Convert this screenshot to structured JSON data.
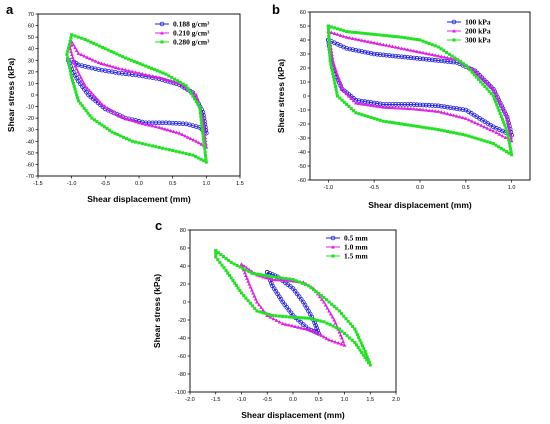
{
  "chart_data": [
    {
      "panel": "a",
      "type": "line",
      "xlabel": "Shear displacement (mm)",
      "ylabel": "Shear stress (kPa)",
      "xlim": [
        -1.5,
        1.5
      ],
      "ylim": [
        -70,
        70
      ],
      "xticks": [
        "-1.5",
        "-1.0",
        "-0.5",
        "0.0",
        "0.5",
        "1.0",
        "1.5"
      ],
      "yticks": [
        "-70",
        "-60",
        "-50",
        "-40",
        "-30",
        "-20",
        "-10",
        "0",
        "10",
        "20",
        "30",
        "40",
        "50",
        "60",
        "70"
      ],
      "legend_position": "top-right",
      "series": [
        {
          "name": "0.188 g/cm³",
          "color": "#1f1fe0",
          "marker": "circle",
          "points": [
            [
              -1.0,
              30
            ],
            [
              -0.9,
              26
            ],
            [
              -0.6,
              22
            ],
            [
              -0.3,
              19
            ],
            [
              0.0,
              17
            ],
            [
              0.3,
              14
            ],
            [
              0.6,
              9
            ],
            [
              0.8,
              2
            ],
            [
              0.95,
              -15
            ],
            [
              1.0,
              -33
            ],
            [
              0.9,
              -28
            ],
            [
              0.7,
              -25
            ],
            [
              0.4,
              -24
            ],
            [
              0.1,
              -24
            ],
            [
              -0.2,
              -20
            ],
            [
              -0.5,
              -12
            ],
            [
              -0.75,
              0
            ],
            [
              -0.9,
              12
            ],
            [
              -1.0,
              22
            ],
            [
              -1.05,
              30
            ]
          ]
        },
        {
          "name": "0.210 g/cm³",
          "color": "#e020e0",
          "marker": "triangle",
          "points": [
            [
              -1.0,
              46
            ],
            [
              -0.9,
              36
            ],
            [
              -0.6,
              28
            ],
            [
              -0.3,
              23
            ],
            [
              0.0,
              19
            ],
            [
              0.3,
              15
            ],
            [
              0.6,
              10
            ],
            [
              0.85,
              0
            ],
            [
              0.95,
              -20
            ],
            [
              1.0,
              -45
            ],
            [
              0.85,
              -40
            ],
            [
              0.6,
              -33
            ],
            [
              0.3,
              -28
            ],
            [
              0.0,
              -24
            ],
            [
              -0.3,
              -18
            ],
            [
              -0.55,
              -8
            ],
            [
              -0.8,
              8
            ],
            [
              -0.95,
              25
            ],
            [
              -1.02,
              40
            ],
            [
              -1.0,
              46
            ]
          ]
        },
        {
          "name": "0.280 g/cm³",
          "color": "#22e022",
          "marker": "square",
          "points": [
            [
              -1.0,
              52
            ],
            [
              -0.8,
              48
            ],
            [
              -0.5,
              40
            ],
            [
              -0.2,
              32
            ],
            [
              0.1,
              25
            ],
            [
              0.4,
              18
            ],
            [
              0.7,
              8
            ],
            [
              0.9,
              -10
            ],
            [
              1.0,
              -58
            ],
            [
              0.8,
              -52
            ],
            [
              0.5,
              -48
            ],
            [
              0.2,
              -44
            ],
            [
              -0.1,
              -40
            ],
            [
              -0.4,
              -32
            ],
            [
              -0.7,
              -20
            ],
            [
              -0.9,
              -5
            ],
            [
              -1.0,
              15
            ],
            [
              -1.07,
              35
            ],
            [
              -1.0,
              52
            ]
          ]
        }
      ]
    },
    {
      "panel": "b",
      "type": "line",
      "xlabel": "Shear displacement (mm)",
      "ylabel": "Shear stress (kPa)",
      "xlim": [
        -1.2,
        1.2
      ],
      "ylim": [
        -60,
        60
      ],
      "xticks": [
        "-1.0",
        "-0.5",
        "0.0",
        "0.5",
        "1.0"
      ],
      "yticks": [
        "-60",
        "-50",
        "-40",
        "-30",
        "-20",
        "-10",
        "0",
        "10",
        "20",
        "30",
        "40",
        "50",
        "60"
      ],
      "legend_position": "top-right",
      "series": [
        {
          "name": "100 kPa",
          "color": "#1f1fe0",
          "marker": "circle",
          "points": [
            [
              -1.0,
              40
            ],
            [
              -0.8,
              34
            ],
            [
              -0.5,
              30
            ],
            [
              -0.2,
              28
            ],
            [
              0.1,
              26
            ],
            [
              0.4,
              24
            ],
            [
              0.6,
              18
            ],
            [
              0.8,
              5
            ],
            [
              0.95,
              -15
            ],
            [
              1.0,
              -28
            ],
            [
              0.8,
              -22
            ],
            [
              0.5,
              -10
            ],
            [
              0.2,
              -7
            ],
            [
              -0.1,
              -6
            ],
            [
              -0.4,
              -6
            ],
            [
              -0.7,
              -3
            ],
            [
              -0.85,
              5
            ],
            [
              -0.95,
              20
            ],
            [
              -1.0,
              40
            ]
          ]
        },
        {
          "name": "200 kPa",
          "color": "#e020e0",
          "marker": "triangle",
          "points": [
            [
              -1.0,
              46
            ],
            [
              -0.8,
              42
            ],
            [
              -0.5,
              38
            ],
            [
              -0.2,
              34
            ],
            [
              0.1,
              30
            ],
            [
              0.4,
              26
            ],
            [
              0.6,
              18
            ],
            [
              0.8,
              5
            ],
            [
              0.95,
              -15
            ],
            [
              1.0,
              -32
            ],
            [
              0.8,
              -25
            ],
            [
              0.5,
              -16
            ],
            [
              0.2,
              -11
            ],
            [
              -0.1,
              -9
            ],
            [
              -0.4,
              -8
            ],
            [
              -0.7,
              -5
            ],
            [
              -0.85,
              5
            ],
            [
              -0.95,
              25
            ],
            [
              -1.0,
              46
            ]
          ]
        },
        {
          "name": "300 kPa",
          "color": "#22e022",
          "marker": "square",
          "points": [
            [
              -1.0,
              50
            ],
            [
              -0.8,
              46
            ],
            [
              -0.5,
              44
            ],
            [
              -0.2,
              42
            ],
            [
              0.0,
              40
            ],
            [
              0.2,
              35
            ],
            [
              0.5,
              22
            ],
            [
              0.8,
              0
            ],
            [
              0.95,
              -25
            ],
            [
              1.0,
              -42
            ],
            [
              0.8,
              -34
            ],
            [
              0.5,
              -28
            ],
            [
              0.2,
              -24
            ],
            [
              -0.1,
              -21
            ],
            [
              -0.4,
              -18
            ],
            [
              -0.7,
              -12
            ],
            [
              -0.9,
              0
            ],
            [
              -0.98,
              25
            ],
            [
              -1.0,
              50
            ]
          ]
        }
      ]
    },
    {
      "panel": "c",
      "type": "line",
      "xlabel": "Shear displacement (mm)",
      "ylabel": "Shear stress (kPa)",
      "xlim": [
        -2.0,
        2.0
      ],
      "ylim": [
        -100,
        80
      ],
      "xticks": [
        "-2.0",
        "-1.5",
        "-1.0",
        "-0.5",
        "0.0",
        "0.5",
        "1.0",
        "1.5",
        "2.0"
      ],
      "yticks": [
        "-100",
        "-80",
        "-60",
        "-40",
        "-20",
        "0",
        "20",
        "40",
        "60",
        "80"
      ],
      "legend_position": "top-right",
      "series": [
        {
          "name": "0.5 mm",
          "color": "#1f1fe0",
          "marker": "circle",
          "points": [
            [
              -0.5,
              33
            ],
            [
              -0.3,
              28
            ],
            [
              0.0,
              15
            ],
            [
              0.2,
              0
            ],
            [
              0.4,
              -20
            ],
            [
              0.5,
              -35
            ],
            [
              0.3,
              -30
            ],
            [
              0.0,
              -15
            ],
            [
              -0.2,
              0
            ],
            [
              -0.4,
              18
            ],
            [
              -0.5,
              33
            ]
          ]
        },
        {
          "name": "1.0 mm",
          "color": "#e020e0",
          "marker": "triangle",
          "points": [
            [
              -1.0,
              42
            ],
            [
              -0.7,
              30
            ],
            [
              -0.4,
              25
            ],
            [
              -0.1,
              24
            ],
            [
              0.2,
              22
            ],
            [
              0.4,
              15
            ],
            [
              0.6,
              0
            ],
            [
              0.8,
              -20
            ],
            [
              0.95,
              -40
            ],
            [
              1.0,
              -48
            ],
            [
              0.7,
              -42
            ],
            [
              0.4,
              -32
            ],
            [
              0.1,
              -28
            ],
            [
              -0.2,
              -24
            ],
            [
              -0.5,
              -15
            ],
            [
              -0.7,
              0
            ],
            [
              -0.85,
              20
            ],
            [
              -1.0,
              42
            ]
          ]
        },
        {
          "name": "1.5 mm",
          "color": "#22e022",
          "marker": "square",
          "points": [
            [
              -1.5,
              57
            ],
            [
              -1.2,
              44
            ],
            [
              -0.8,
              32
            ],
            [
              -0.4,
              28
            ],
            [
              0.0,
              25
            ],
            [
              0.3,
              18
            ],
            [
              0.6,
              5
            ],
            [
              0.9,
              -10
            ],
            [
              1.2,
              -30
            ],
            [
              1.4,
              -55
            ],
            [
              1.5,
              -70
            ],
            [
              1.2,
              -45
            ],
            [
              0.9,
              -30
            ],
            [
              0.6,
              -22
            ],
            [
              0.3,
              -18
            ],
            [
              0.0,
              -17
            ],
            [
              -0.4,
              -15
            ],
            [
              -0.7,
              -10
            ],
            [
              -1.0,
              10
            ],
            [
              -1.3,
              35
            ],
            [
              -1.5,
              50
            ],
            [
              -1.5,
              57
            ]
          ]
        }
      ]
    }
  ]
}
